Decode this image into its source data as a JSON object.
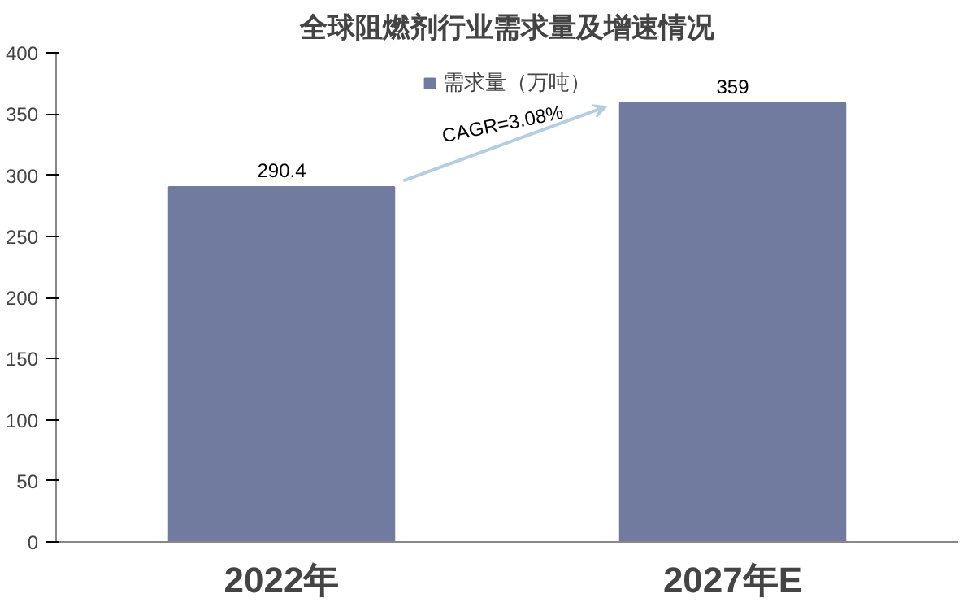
{
  "chart_data": {
    "type": "bar",
    "title": "全球阻燃剂行业需求量及增速情况",
    "categories": [
      "2022年",
      "2027年E"
    ],
    "series": [
      {
        "name": "需求量（万吨）",
        "color": "#717ba0",
        "values": [
          290.4,
          359
        ]
      }
    ],
    "ylim": [
      0,
      400
    ],
    "yticks": [
      0,
      50,
      100,
      150,
      200,
      250,
      300,
      350,
      400
    ],
    "data_labels": true,
    "legend": "top",
    "grid": false,
    "annotations": [
      "CAGR=3.08%"
    ]
  }
}
